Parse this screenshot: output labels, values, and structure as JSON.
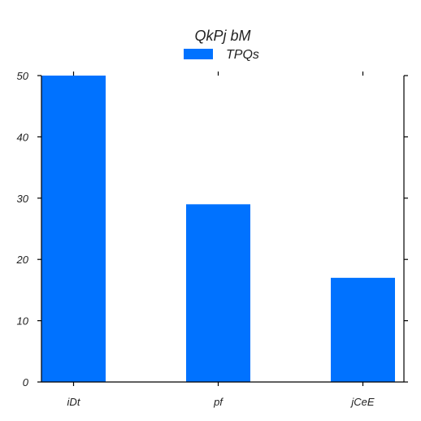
{
  "chart_data": {
    "type": "bar",
    "title": "QkPj bM",
    "xlabel": "",
    "ylabel": "",
    "categories": [
      "iDt",
      "pf",
      "jCeE"
    ],
    "series": [
      {
        "name": "TPQs",
        "values": [
          50,
          29,
          17
        ],
        "color": "#0072ff"
      }
    ],
    "ylim": [
      0,
      50
    ],
    "yticks": [
      0,
      10,
      20,
      30,
      40,
      50
    ],
    "grid": false,
    "legend_position": "top-center"
  }
}
